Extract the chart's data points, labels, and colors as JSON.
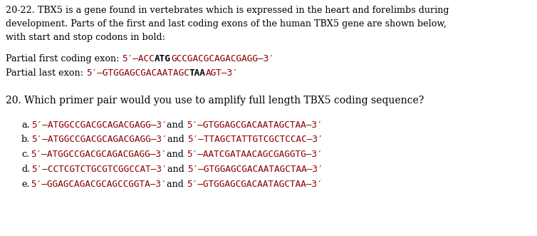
{
  "bg_color": "#ffffff",
  "text_color": "#000000",
  "dna_color": "#8B0000",
  "bold_color": "#000000",
  "figsize": [
    7.54,
    3.31
  ],
  "dpi": 100,
  "intro_line1": "20-22. TBX5 is a gene found in vertebrates which is expressed in the heart and forelimbs during",
  "intro_line2": "development. Parts of the first and last coding exons of the human TBX5 gene are shown below,",
  "intro_line3": "with start and stop codons in bold:",
  "exon1_label": "Partial first coding exon: 5′–ACC",
  "exon1_bold": "ATG",
  "exon1_rest": "GCCGACGCAGACGAGG–3′",
  "exon2_label": "Partial last exon: 5′–GTGGAGCGACAATAGC",
  "exon2_bold": "TAA",
  "exon2_rest": "AGT–3′",
  "question": "20. Which primer pair would you use to amplify full length TBX5 coding sequence?",
  "options": [
    {
      "letter": "a. 5′–ATGGCCGACGCAGACGAGG–3′",
      "and": "and ",
      "seq2": "5′–GTGGAGCGACAATAGCTAA–3′"
    },
    {
      "letter": "b. 5′–ATGGCCGACGCAGACGAGG–3′",
      "and": "and ",
      "seq2": "5′–TTAGCTATTGTCGCTCCAC–3′"
    },
    {
      "letter": "c. 5′–ATGGCCGACGCAGACGAGG–3′",
      "and": "and ",
      "seq2": "5′–AATCGATAACAGCGAGGTG–3′"
    },
    {
      "letter": "d. 5′–CCTCGTCTGCGTCGGCCAT–3′",
      "and": "and ",
      "seq2": "5′–GTGGAGCGACAATAGCTAA–3′"
    },
    {
      "letter": "e. 5′–GGAGCAGACGCAGCCGGTA–3′",
      "and": "and ",
      "seq2": "5′–GTGGAGCGACAATAGCTAA–3′"
    }
  ],
  "intro_fs": 9.2,
  "exon_fs": 9.2,
  "question_fs": 10.0,
  "option_fs": 9.2,
  "serif": "DejaVu Serif",
  "mono": "DejaVu Sans Mono"
}
